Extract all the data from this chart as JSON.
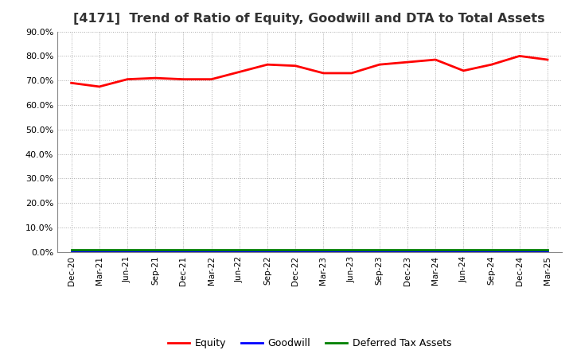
{
  "title": "[4171]  Trend of Ratio of Equity, Goodwill and DTA to Total Assets",
  "x_labels": [
    "Dec-20",
    "Mar-21",
    "Jun-21",
    "Sep-21",
    "Dec-21",
    "Mar-22",
    "Jun-22",
    "Sep-22",
    "Dec-22",
    "Mar-23",
    "Jun-23",
    "Sep-23",
    "Dec-23",
    "Mar-24",
    "Jun-24",
    "Sep-24",
    "Dec-24",
    "Mar-25"
  ],
  "equity": [
    69.0,
    67.5,
    70.5,
    71.0,
    70.5,
    70.5,
    73.5,
    76.5,
    76.0,
    73.0,
    73.0,
    76.5,
    77.5,
    78.5,
    74.0,
    76.5,
    80.0,
    78.5
  ],
  "goodwill": [
    0.3,
    0.3,
    0.3,
    0.3,
    0.3,
    0.3,
    0.3,
    0.3,
    0.3,
    0.3,
    0.3,
    0.3,
    0.3,
    0.3,
    0.3,
    0.3,
    0.3,
    0.3
  ],
  "dta": [
    1.0,
    1.0,
    1.0,
    1.0,
    1.0,
    1.0,
    1.0,
    1.0,
    1.0,
    1.0,
    1.0,
    1.0,
    1.0,
    1.0,
    1.0,
    1.0,
    1.0,
    1.0
  ],
  "equity_color": "#FF0000",
  "goodwill_color": "#0000FF",
  "dta_color": "#008000",
  "ylim": [
    0.0,
    90.0
  ],
  "yticks": [
    0.0,
    10.0,
    20.0,
    30.0,
    40.0,
    50.0,
    60.0,
    70.0,
    80.0,
    90.0
  ],
  "background_color": "#FFFFFF",
  "plot_bg_color": "#FFFFFF",
  "grid_color": "#AAAAAA",
  "title_color": "#333333",
  "title_fontsize": 11.5,
  "legend_labels": [
    "Equity",
    "Goodwill",
    "Deferred Tax Assets"
  ],
  "line_width": 2.0,
  "tick_fontsize": 7.5,
  "ytick_fontsize": 8.0
}
